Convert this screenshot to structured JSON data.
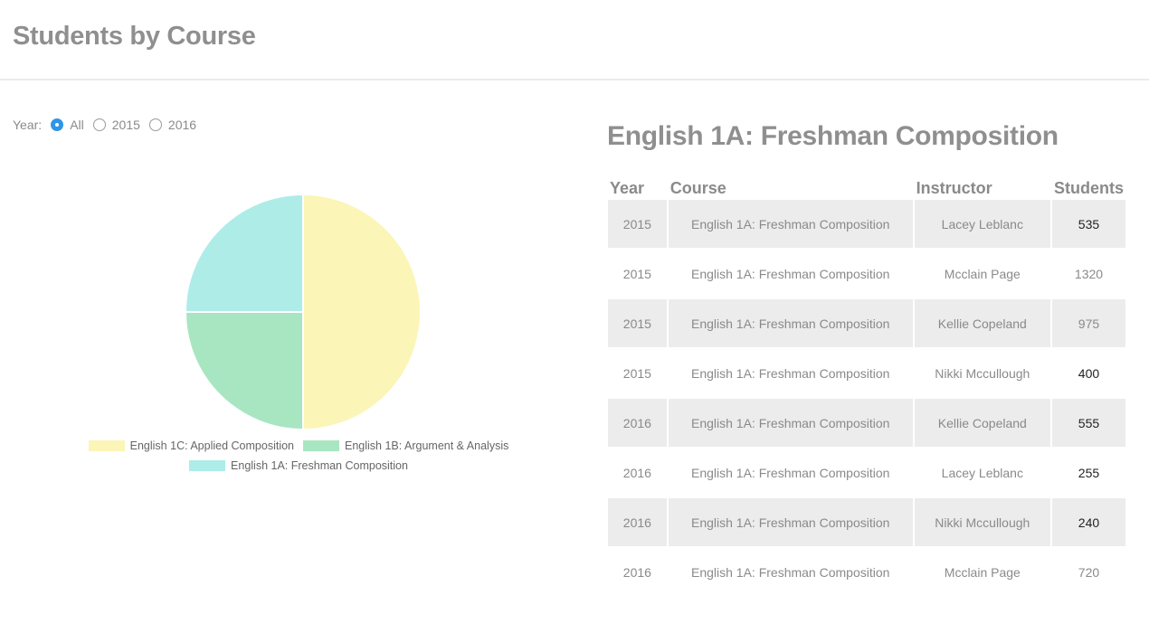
{
  "header": {
    "title": "Students by Course"
  },
  "filter": {
    "label": "Year:",
    "options": [
      {
        "label": "All",
        "selected": true
      },
      {
        "label": "2015",
        "selected": false
      },
      {
        "label": "2016",
        "selected": false
      }
    ]
  },
  "chart_data": {
    "type": "pie",
    "categories": [
      "English 1C: Applied Composition",
      "English 1B: Argument & Analysis",
      "English 1A: Freshman Composition"
    ],
    "values": [
      50,
      25,
      25
    ],
    "colors": [
      "#fbf5b8",
      "#a8e6c2",
      "#aeece8"
    ],
    "legend": "bottom"
  },
  "detail": {
    "title": "English 1A: Freshman Composition",
    "columns": [
      "Year",
      "Course",
      "Instructor",
      "Students"
    ],
    "rows": [
      {
        "year": "2015",
        "course": "English 1A: Freshman Composition",
        "instructor": "Lacey Leblanc",
        "students": "535"
      },
      {
        "year": "2015",
        "course": "English 1A: Freshman Composition",
        "instructor": "Mcclain Page",
        "students": "1320"
      },
      {
        "year": "2015",
        "course": "English 1A: Freshman Composition",
        "instructor": "Kellie Copeland",
        "students": "975"
      },
      {
        "year": "2015",
        "course": "English 1A: Freshman Composition",
        "instructor": "Nikki Mccullough",
        "students": "400"
      },
      {
        "year": "2016",
        "course": "English 1A: Freshman Composition",
        "instructor": "Kellie Copeland",
        "students": "555"
      },
      {
        "year": "2016",
        "course": "English 1A: Freshman Composition",
        "instructor": "Lacey Leblanc",
        "students": "255"
      },
      {
        "year": "2016",
        "course": "English 1A: Freshman Composition",
        "instructor": "Nikki Mccullough",
        "students": "240"
      },
      {
        "year": "2016",
        "course": "English 1A: Freshman Composition",
        "instructor": "Mcclain Page",
        "students": "720"
      }
    ]
  }
}
